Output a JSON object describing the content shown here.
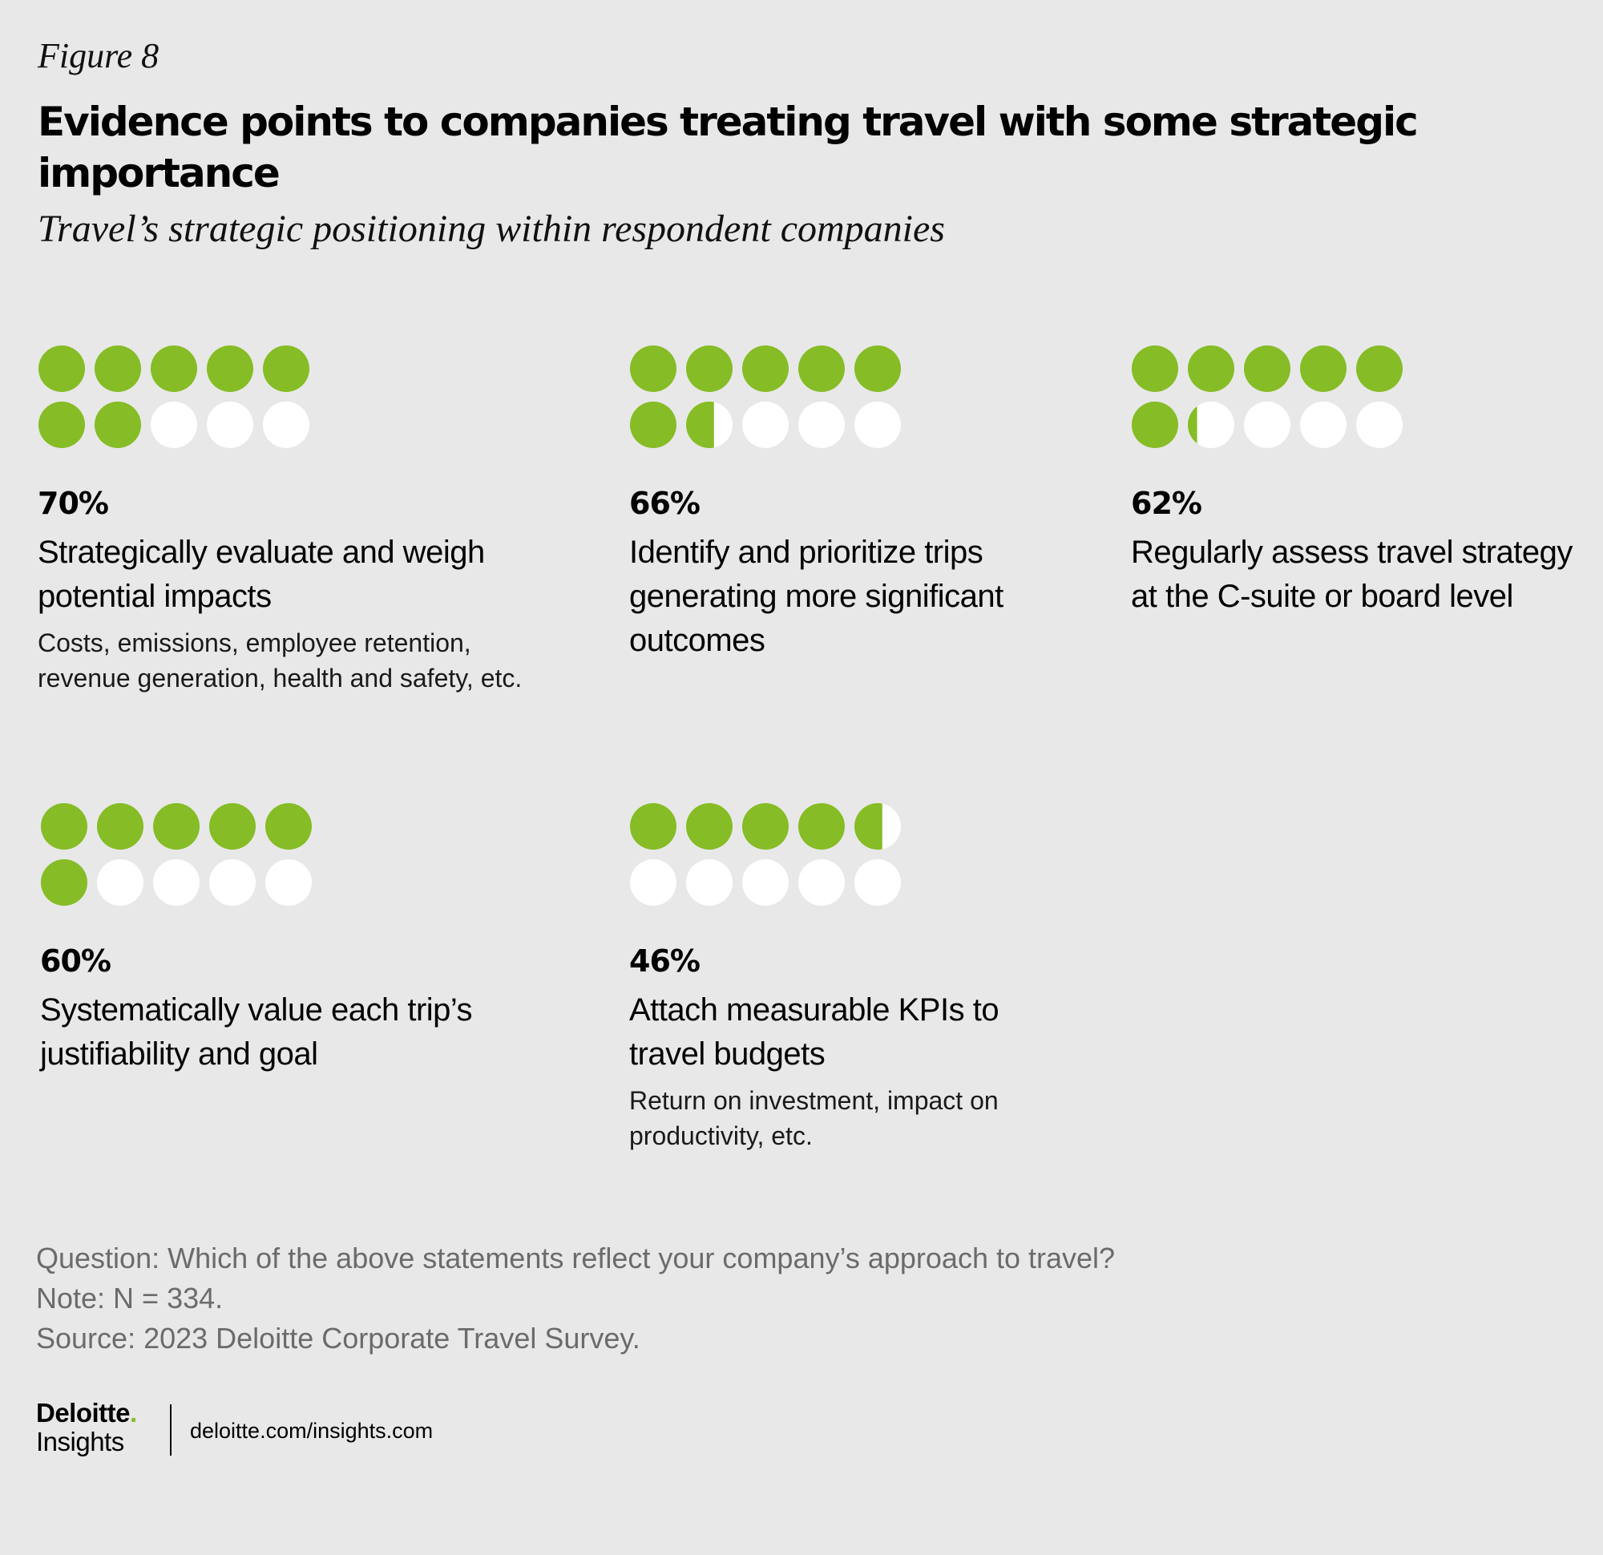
{
  "header": {
    "figure_label": "Figure 8",
    "title": "Evidence points to companies treating travel with some strategic importance",
    "subtitle": "Travel’s strategic positioning within respondent companies"
  },
  "colors": {
    "background": "#e8e8e8",
    "filled": "#86bc25",
    "empty": "#ffffff"
  },
  "chart_data": {
    "type": "dot-matrix",
    "dots_per_chart": 10,
    "items": [
      {
        "value": 70,
        "value_label": "70%",
        "label": "Strategically evaluate and weigh potential impacts",
        "detail": "Costs, emissions, employee retention, revenue generation, health and safety, etc."
      },
      {
        "value": 66,
        "value_label": "66%",
        "label": "Identify and prioritize trips generating more significant outcomes",
        "detail": ""
      },
      {
        "value": 62,
        "value_label": "62%",
        "label": "Regularly assess travel strategy at the C-suite or board level",
        "detail": ""
      },
      {
        "value": 60,
        "value_label": "60%",
        "label": "Systematically value each trip’s justifiability and goal",
        "detail": ""
      },
      {
        "value": 46,
        "value_label": "46%",
        "label": "Attach measurable KPIs to travel budgets",
        "detail": "Return on investment, impact on productivity, etc."
      }
    ]
  },
  "notes": {
    "question": "Question: Which of the above statements reflect your company’s approach to travel?",
    "note": "Note: N = 334.",
    "source": "Source: 2023 Deloitte Corporate Travel Survey."
  },
  "branding": {
    "name": "Deloitte",
    "dot": ".",
    "sub": "Insights",
    "url": "deloitte.com/insights.com"
  }
}
